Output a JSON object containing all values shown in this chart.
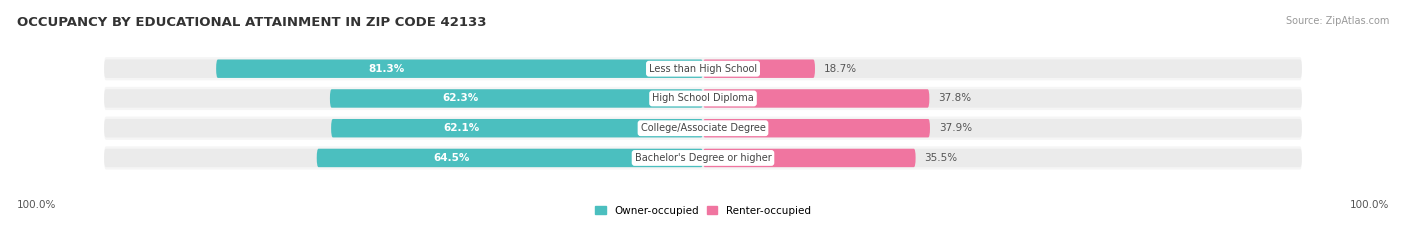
{
  "title": "OCCUPANCY BY EDUCATIONAL ATTAINMENT IN ZIP CODE 42133",
  "source_text": "Source: ZipAtlas.com",
  "categories": [
    "Less than High School",
    "High School Diploma",
    "College/Associate Degree",
    "Bachelor's Degree or higher"
  ],
  "owner_pct": [
    81.3,
    62.3,
    62.1,
    64.5
  ],
  "renter_pct": [
    18.7,
    37.8,
    37.9,
    35.5
  ],
  "owner_color": "#4BBFBF",
  "renter_color": "#F075A0",
  "owner_label": "Owner-occupied",
  "renter_label": "Renter-occupied",
  "bar_bg_color": "#EBEBEB",
  "row_bg_color": "#F5F5F5",
  "axis_label_left": "100.0%",
  "axis_label_right": "100.0%",
  "title_fontsize": 9.5,
  "source_fontsize": 7,
  "pct_fontsize": 7.5,
  "cat_fontsize": 7,
  "legend_fontsize": 7.5,
  "axis_tick_fontsize": 7.5,
  "bar_height": 0.62,
  "figsize": [
    14.06,
    2.33
  ],
  "dpi": 100
}
